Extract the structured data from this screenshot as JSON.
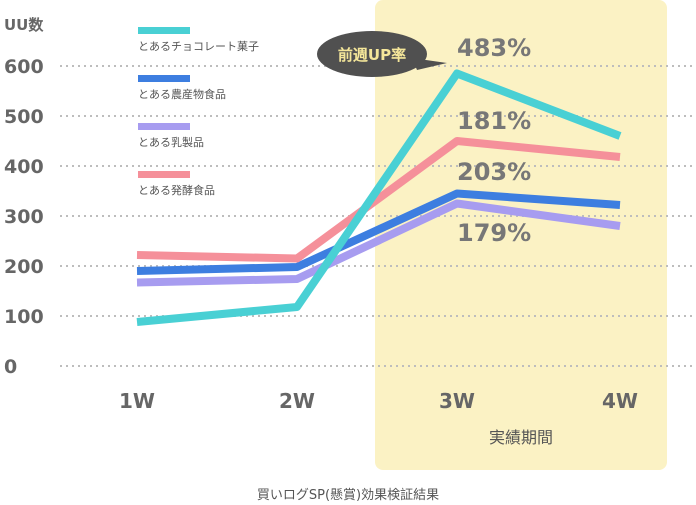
{
  "chart_data": {
    "type": "line",
    "ylabel": "UU数",
    "xlabel": "",
    "title": "",
    "categories": [
      "1W",
      "2W",
      "3W",
      "4W"
    ],
    "ylim": [
      0,
      600
    ],
    "yticks": [
      0,
      100,
      200,
      300,
      400,
      500,
      600
    ],
    "grid": true,
    "legend_placement": "top-left",
    "highlight": {
      "from": "3W",
      "to": "4W",
      "label": "実績期間",
      "color": "#fbf2c4"
    },
    "series": [
      {
        "name": "とあるチョコレート菓子",
        "color": "#49d0d4",
        "values": [
          88,
          118,
          585,
          460
        ],
        "growth_label": "483%"
      },
      {
        "name": "とある農産物食品",
        "color": "#3d7ee0",
        "values": [
          190,
          198,
          345,
          322
        ],
        "growth_label": "181%"
      },
      {
        "name": "とある乳製品",
        "color": "#a79cf0",
        "values": [
          167,
          174,
          325,
          280
        ],
        "growth_label": "203%"
      },
      {
        "name": "とある発酵食品",
        "color": "#f5909a",
        "values": [
          222,
          215,
          450,
          418
        ],
        "growth_label": "179%"
      }
    ],
    "callout": "前週UP率",
    "footer": "買いログSP(懸賞)効果検証結果"
  }
}
